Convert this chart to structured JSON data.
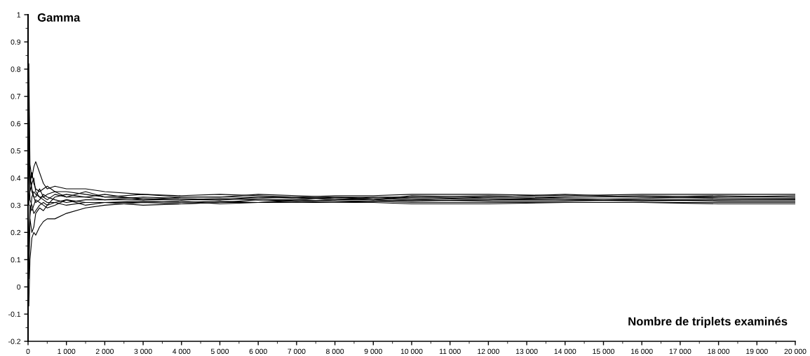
{
  "chart_data": {
    "type": "line",
    "xlabel": "Nombre de triplets examinés",
    "ylabel": "Gamma",
    "x": [
      0,
      20,
      50,
      100,
      150,
      200,
      300,
      400,
      500,
      700,
      1000,
      1500,
      2000,
      3000,
      4000,
      5000,
      6000,
      7000,
      8000,
      9000,
      10000,
      12000,
      14000,
      16000,
      18000,
      20000
    ],
    "series": [
      {
        "color": "#000000",
        "values": [
          0.5,
          0.82,
          0.45,
          0.4,
          0.44,
          0.46,
          0.42,
          0.38,
          0.36,
          0.37,
          0.36,
          0.36,
          0.35,
          0.34,
          0.335,
          0.34,
          0.335,
          0.33,
          0.335,
          0.335,
          0.34,
          0.34,
          0.335,
          0.34,
          0.34,
          0.34
        ]
      },
      {
        "color": "#000000",
        "values": [
          0.0,
          -0.07,
          0.1,
          0.18,
          0.2,
          0.19,
          0.22,
          0.24,
          0.25,
          0.25,
          0.27,
          0.29,
          0.3,
          0.31,
          0.305,
          0.31,
          0.31,
          0.315,
          0.31,
          0.31,
          0.305,
          0.305,
          0.31,
          0.31,
          0.305,
          0.305
        ]
      },
      {
        "color": "#000000",
        "values": [
          0.2,
          0.72,
          0.35,
          0.38,
          0.4,
          0.35,
          0.33,
          0.33,
          0.34,
          0.35,
          0.33,
          0.33,
          0.32,
          0.33,
          0.325,
          0.32,
          0.325,
          0.33,
          0.325,
          0.32,
          0.33,
          0.325,
          0.32,
          0.325,
          0.33,
          0.33
        ]
      },
      {
        "color": "#000000",
        "values": [
          0.3,
          0.03,
          0.25,
          0.2,
          0.22,
          0.27,
          0.29,
          0.28,
          0.3,
          0.31,
          0.3,
          0.31,
          0.31,
          0.3,
          0.305,
          0.31,
          0.32,
          0.315,
          0.32,
          0.32,
          0.315,
          0.32,
          0.32,
          0.315,
          0.32,
          0.32
        ]
      },
      {
        "color": "#000000",
        "values": [
          0.6,
          0.52,
          0.42,
          0.35,
          0.33,
          0.31,
          0.32,
          0.34,
          0.33,
          0.32,
          0.31,
          0.32,
          0.32,
          0.32,
          0.33,
          0.33,
          0.33,
          0.325,
          0.33,
          0.33,
          0.33,
          0.335,
          0.33,
          0.33,
          0.325,
          0.325
        ]
      },
      {
        "color": "#000000",
        "values": [
          0.1,
          0.12,
          0.3,
          0.28,
          0.3,
          0.32,
          0.31,
          0.3,
          0.29,
          0.3,
          0.32,
          0.31,
          0.31,
          0.315,
          0.31,
          0.315,
          0.31,
          0.32,
          0.315,
          0.315,
          0.32,
          0.315,
          0.315,
          0.32,
          0.315,
          0.315
        ]
      },
      {
        "color": "#000000",
        "values": [
          0.4,
          0.3,
          0.38,
          0.42,
          0.38,
          0.36,
          0.35,
          0.36,
          0.37,
          0.35,
          0.35,
          0.34,
          0.33,
          0.325,
          0.32,
          0.325,
          0.32,
          0.32,
          0.33,
          0.325,
          0.32,
          0.33,
          0.325,
          0.32,
          0.32,
          0.322
        ]
      },
      {
        "color": "#000000",
        "values": [
          0.7,
          0.47,
          0.32,
          0.3,
          0.27,
          0.28,
          0.3,
          0.31,
          0.3,
          0.33,
          0.34,
          0.33,
          0.34,
          0.32,
          0.32,
          0.32,
          0.33,
          0.33,
          0.32,
          0.33,
          0.325,
          0.32,
          0.33,
          0.335,
          0.33,
          0.335
        ]
      },
      {
        "color": "#000000",
        "values": [
          -0.05,
          0.17,
          0.26,
          0.33,
          0.35,
          0.34,
          0.33,
          0.32,
          0.31,
          0.31,
          0.32,
          0.3,
          0.31,
          0.31,
          0.315,
          0.305,
          0.31,
          0.31,
          0.31,
          0.315,
          0.31,
          0.31,
          0.31,
          0.31,
          0.31,
          0.31
        ]
      },
      {
        "color": "#000000",
        "values": [
          0.25,
          0.44,
          0.4,
          0.36,
          0.33,
          0.33,
          0.36,
          0.33,
          0.32,
          0.34,
          0.33,
          0.35,
          0.33,
          0.34,
          0.33,
          0.33,
          0.34,
          0.335,
          0.33,
          0.32,
          0.335,
          0.33,
          0.34,
          0.33,
          0.335,
          0.33
        ]
      }
    ],
    "xlim": [
      0,
      20000
    ],
    "ylim": [
      -0.2,
      1
    ],
    "xticks": [
      0,
      {
        "value": 1000,
        "label": "1 000"
      },
      {
        "value": 2000,
        "label": "2 000"
      },
      {
        "value": 3000,
        "label": "3 000"
      },
      {
        "value": 4000,
        "label": "4 000"
      },
      {
        "value": 5000,
        "label": "5 000"
      },
      {
        "value": 6000,
        "label": "6 000"
      },
      {
        "value": 7000,
        "label": "7 000"
      },
      {
        "value": 8000,
        "label": "8 000"
      },
      {
        "value": 9000,
        "label": "9 000"
      },
      {
        "value": 10000,
        "label": "10 000"
      },
      {
        "value": 11000,
        "label": "11 000"
      },
      {
        "value": 12000,
        "label": "12 000"
      },
      {
        "value": 13000,
        "label": "13 000"
      },
      {
        "value": 14000,
        "label": "14 000"
      },
      {
        "value": 15000,
        "label": "15 000"
      },
      {
        "value": 16000,
        "label": "16 000"
      },
      {
        "value": 17000,
        "label": "17 000"
      },
      {
        "value": 18000,
        "label": "18 000"
      },
      {
        "value": 19000,
        "label": "19 000"
      },
      {
        "value": 20000,
        "label": "20 000"
      }
    ],
    "yticks": [
      -0.2,
      -0.1,
      0,
      0.1,
      0.2,
      0.3,
      0.4,
      0.5,
      0.6,
      0.7,
      0.8,
      0.9,
      1
    ],
    "grid": false,
    "marker": "none",
    "line_style": "solid"
  }
}
